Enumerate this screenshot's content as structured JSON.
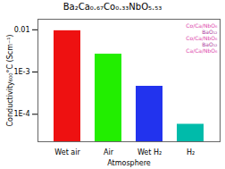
{
  "chart_data": {
    "type": "bar",
    "title": "Ba₂Ca₀.₆₇Co₀.₃₃NbO₅.₅₃",
    "xlabel": "Atmosphere",
    "ylabel": "Conductivity₆₀₀°C (Scm⁻¹)",
    "categories": [
      "Wet air",
      "Air",
      "Wet H₂",
      "H₂"
    ],
    "values": [
      0.0095,
      0.00265,
      0.00046,
      5.8e-05
    ],
    "colors": [
      "#ee1111",
      "#22ee00",
      "#2233ee",
      "#00bbaa"
    ],
    "log": "y",
    "ylim": [
      2.238721138568338e-05,
      0.01778279410038923
    ],
    "yticks": [
      {
        "value": 0.0001,
        "label": "1E-4"
      },
      {
        "value": 0.001,
        "label": "1E-3"
      },
      0.01
    ],
    "grid": false,
    "annotations": [
      {
        "text": "Co/Ca/NbO₆",
        "color": "#dd44aa"
      },
      {
        "text": "BaO₁₂",
        "color": "#aa3399"
      },
      {
        "text": "Co/Ca/NbO₆",
        "color": "#dd44aa"
      },
      {
        "text": "BaO₁₂",
        "color": "#aa3399"
      },
      {
        "text": "Ca/Ca/NbO₆",
        "color": "#dd44aa"
      }
    ]
  }
}
